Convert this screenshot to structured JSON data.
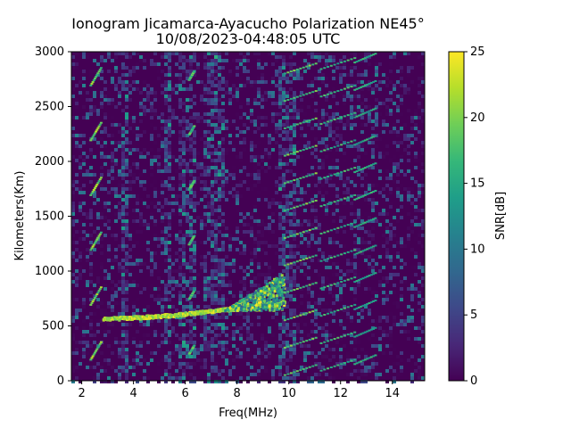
{
  "chart_data": {
    "type": "heatmap",
    "title": "Ionogram Jicamarca-Ayacucho Polarization NE45°",
    "subtitle": "10/08/2023-04:48:05 UTC",
    "xlabel": "Freq(MHz)",
    "ylabel": "Kilometers(Km)",
    "xlim": [
      1.6,
      15.25
    ],
    "ylim": [
      0,
      3000
    ],
    "xticks": [
      2,
      4,
      6,
      8,
      10,
      12,
      14
    ],
    "xtick_labels": [
      "2",
      "4",
      "6",
      "8",
      "10",
      "12",
      "14"
    ],
    "yticks": [
      0,
      500,
      1000,
      1500,
      2000,
      2500,
      3000
    ],
    "ytick_labels": [
      "0",
      "500",
      "1000",
      "1500",
      "2000",
      "2500",
      "3000"
    ],
    "colorbar": {
      "label": "SNR[dB]",
      "range": [
        0,
        25
      ],
      "ticks": [
        0,
        5,
        10,
        15,
        20,
        25
      ],
      "tick_labels": [
        "0",
        "5",
        "10",
        "15",
        "20",
        "25"
      ],
      "colormap": "viridis",
      "colors": [
        "#440154",
        "#482878",
        "#3e4989",
        "#31688e",
        "#26828e",
        "#1f9e89",
        "#35b779",
        "#6ece58",
        "#b5de2b",
        "#fde725"
      ]
    },
    "grid": false,
    "traces": [
      {
        "feature": "F-layer echo",
        "x_range": [
          2.8,
          9.8
        ],
        "height_km": [
          575,
          730
        ],
        "snr_db": 25
      },
      {
        "feature": "spread-F",
        "x_range": [
          7.5,
          9.8
        ],
        "height_km": [
          650,
          1000
        ],
        "snr_db": 18
      },
      {
        "feature": "oblique lines",
        "x_range": [
          9.8,
          13.5
        ],
        "snr_db": 20
      }
    ]
  }
}
